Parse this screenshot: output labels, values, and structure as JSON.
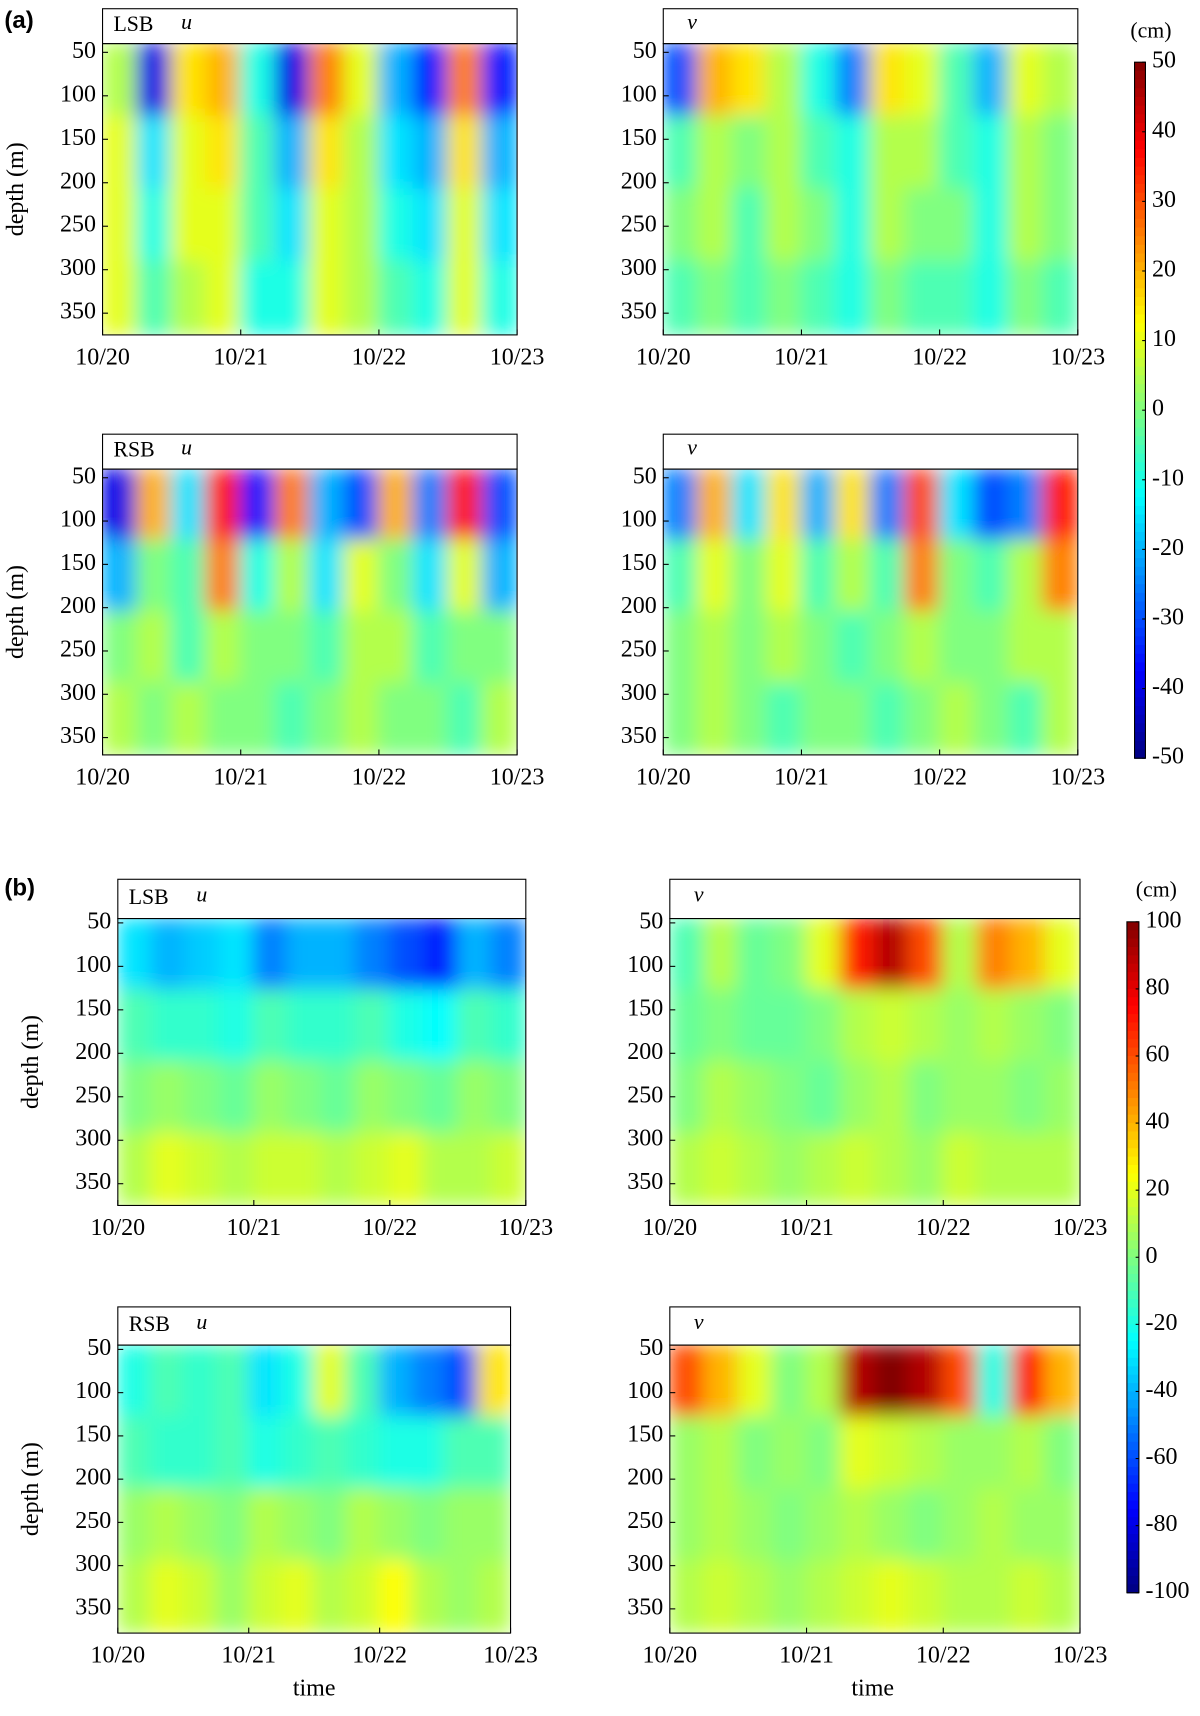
{
  "chart_data": [
    {
      "type": "heatmap",
      "label": "(a)",
      "colorbar": {
        "label": "(cm)",
        "lim": [
          -50,
          50
        ],
        "ticks": [
          50,
          40,
          30,
          20,
          10,
          0,
          -10,
          -20,
          -30,
          -40,
          -50
        ]
      },
      "panels": [
        {
          "station": "LSB",
          "component": "u",
          "ylabel": "depth (m)",
          "ylim": [
            40,
            375
          ],
          "yticks": [
            50,
            100,
            150,
            200,
            250,
            300,
            350
          ],
          "xlim": [
            0,
            3
          ],
          "xticks": [
            {
              "value": 0,
              "label": "10/20"
            },
            {
              "value": 1,
              "label": "10/21"
            },
            {
              "value": 2,
              "label": "10/22"
            },
            {
              "value": 3,
              "label": "10/23"
            }
          ],
          "z": [
            [
              5,
              -40,
              15,
              20,
              -10,
              -40,
              25,
              10,
              -20,
              -35,
              25,
              -35
            ],
            [
              10,
              -15,
              10,
              15,
              -5,
              -20,
              15,
              5,
              -15,
              -20,
              15,
              -20
            ],
            [
              10,
              -10,
              10,
              10,
              -5,
              -15,
              10,
              5,
              -10,
              -15,
              10,
              -15
            ],
            [
              10,
              -5,
              5,
              10,
              -10,
              -10,
              10,
              5,
              -5,
              -10,
              10,
              -10
            ]
          ]
        },
        {
          "component": "v",
          "ylim": [
            40,
            375
          ],
          "yticks": [
            50,
            100,
            150,
            200,
            250,
            300,
            350
          ],
          "xlim": [
            0,
            3
          ],
          "xticks": [
            {
              "value": 0,
              "label": "10/20"
            },
            {
              "value": 1,
              "label": "10/21"
            },
            {
              "value": 2,
              "label": "10/22"
            },
            {
              "value": 3,
              "label": "10/23"
            }
          ],
          "z": [
            [
              -30,
              20,
              15,
              5,
              -10,
              -25,
              15,
              10,
              -5,
              -20,
              10,
              5
            ],
            [
              -5,
              5,
              0,
              5,
              -5,
              -10,
              5,
              5,
              -5,
              -10,
              5,
              0
            ],
            [
              0,
              5,
              -5,
              5,
              0,
              -10,
              5,
              0,
              0,
              -10,
              5,
              0
            ],
            [
              -5,
              0,
              -5,
              0,
              -5,
              -10,
              0,
              -5,
              -5,
              -10,
              0,
              -5
            ]
          ]
        },
        {
          "station": "RSB",
          "component": "u",
          "ylabel": "depth (m)",
          "ylim": [
            40,
            370
          ],
          "yticks": [
            50,
            100,
            150,
            200,
            250,
            300,
            350
          ],
          "xlim": [
            0,
            3
          ],
          "xticks": [
            {
              "value": 0,
              "label": "10/20"
            },
            {
              "value": 1,
              "label": "10/21"
            },
            {
              "value": 2,
              "label": "10/22"
            },
            {
              "value": 3,
              "label": "10/23"
            }
          ],
          "z": [
            [
              -40,
              20,
              -15,
              35,
              -35,
              25,
              -20,
              -30,
              20,
              -25,
              35,
              -30
            ],
            [
              -20,
              0,
              -5,
              25,
              -10,
              5,
              -15,
              10,
              0,
              -15,
              10,
              -20
            ],
            [
              0,
              5,
              -5,
              5,
              0,
              0,
              -5,
              5,
              5,
              -5,
              0,
              0
            ],
            [
              5,
              0,
              5,
              0,
              0,
              -5,
              0,
              5,
              0,
              0,
              -5,
              5
            ]
          ]
        },
        {
          "component": "v",
          "ylim": [
            40,
            370
          ],
          "yticks": [
            50,
            100,
            150,
            200,
            250,
            300,
            350
          ],
          "xlim": [
            0,
            3
          ],
          "xticks": [
            {
              "value": 0,
              "label": "10/20"
            },
            {
              "value": 1,
              "label": "10/21"
            },
            {
              "value": 2,
              "label": "10/22"
            },
            {
              "value": 3,
              "label": "10/23"
            }
          ],
          "z": [
            [
              -25,
              20,
              -15,
              15,
              -20,
              15,
              -25,
              30,
              -15,
              -30,
              -25,
              35
            ],
            [
              -5,
              10,
              0,
              10,
              -5,
              5,
              -5,
              25,
              0,
              -5,
              5,
              25
            ],
            [
              0,
              5,
              0,
              5,
              0,
              -5,
              0,
              5,
              0,
              0,
              5,
              5
            ],
            [
              0,
              5,
              0,
              -5,
              0,
              0,
              -5,
              0,
              5,
              0,
              -5,
              5
            ]
          ]
        }
      ]
    },
    {
      "type": "heatmap",
      "label": "(b)",
      "colorbar": {
        "label": "(cm)",
        "lim": [
          -100,
          100
        ],
        "ticks": [
          100,
          80,
          60,
          40,
          20,
          0,
          -20,
          -40,
          -60,
          -80,
          -100
        ]
      },
      "panels": [
        {
          "station": "LSB",
          "component": "u",
          "ylabel": "depth (m)",
          "ylim": [
            45,
            375
          ],
          "yticks": [
            50,
            100,
            150,
            200,
            250,
            300,
            350
          ],
          "xlim": [
            0,
            3
          ],
          "xticks": [
            {
              "value": 0,
              "label": "10/20"
            },
            {
              "value": 1,
              "label": "10/21"
            },
            {
              "value": 2,
              "label": "10/22"
            },
            {
              "value": 3,
              "label": "10/23"
            }
          ],
          "z": [
            [
              -30,
              -40,
              -35,
              -30,
              -50,
              -40,
              -40,
              -50,
              -60,
              -70,
              -40,
              -50
            ],
            [
              -10,
              -15,
              -15,
              -20,
              -10,
              -15,
              -15,
              -10,
              -20,
              -25,
              -10,
              -15
            ],
            [
              0,
              5,
              0,
              -5,
              5,
              0,
              -5,
              5,
              0,
              -5,
              5,
              0
            ],
            [
              10,
              20,
              15,
              10,
              15,
              15,
              10,
              15,
              20,
              10,
              10,
              15
            ]
          ]
        },
        {
          "component": "v",
          "ylim": [
            45,
            375
          ],
          "yticks": [
            50,
            100,
            150,
            200,
            250,
            300,
            350
          ],
          "xlim": [
            0,
            3
          ],
          "xticks": [
            {
              "value": 0,
              "label": "10/20"
            },
            {
              "value": 1,
              "label": "10/21"
            },
            {
              "value": 2,
              "label": "10/22"
            },
            {
              "value": 3,
              "label": "10/23"
            }
          ],
          "z": [
            [
              -10,
              10,
              -5,
              0,
              20,
              70,
              90,
              60,
              10,
              50,
              40,
              20
            ],
            [
              -5,
              0,
              -5,
              -5,
              0,
              10,
              15,
              10,
              5,
              10,
              5,
              0
            ],
            [
              0,
              10,
              5,
              0,
              -5,
              5,
              10,
              0,
              5,
              5,
              0,
              5
            ],
            [
              10,
              15,
              10,
              5,
              10,
              15,
              10,
              5,
              15,
              10,
              10,
              10
            ]
          ]
        },
        {
          "station": "RSB",
          "component": "u",
          "ylabel": "depth (m)",
          "xlabel": "time",
          "ylim": [
            45,
            378
          ],
          "yticks": [
            50,
            100,
            150,
            200,
            250,
            300,
            350
          ],
          "xlim": [
            0,
            3
          ],
          "xticks": [
            {
              "value": 0,
              "label": "10/20"
            },
            {
              "value": 1,
              "label": "10/21"
            },
            {
              "value": 2,
              "label": "10/22"
            },
            {
              "value": 3,
              "label": "10/23"
            }
          ],
          "z": [
            [
              -20,
              -10,
              -15,
              -10,
              -30,
              -20,
              20,
              -10,
              -40,
              -50,
              -60,
              30
            ],
            [
              -10,
              -15,
              -15,
              -10,
              -20,
              -15,
              -10,
              -15,
              -20,
              -20,
              -10,
              -10
            ],
            [
              5,
              10,
              5,
              0,
              10,
              5,
              0,
              10,
              5,
              0,
              5,
              5
            ],
            [
              10,
              20,
              15,
              5,
              15,
              20,
              10,
              15,
              25,
              10,
              5,
              10
            ]
          ]
        },
        {
          "component": "v",
          "xlabel": "time",
          "ylim": [
            45,
            378
          ],
          "yticks": [
            50,
            100,
            150,
            200,
            250,
            300,
            350
          ],
          "xlim": [
            0,
            3
          ],
          "xticks": [
            {
              "value": 0,
              "label": "10/20"
            },
            {
              "value": 1,
              "label": "10/21"
            },
            {
              "value": 2,
              "label": "10/22"
            },
            {
              "value": 3,
              "label": "10/23"
            }
          ],
          "z": [
            [
              60,
              40,
              20,
              0,
              10,
              90,
              100,
              90,
              60,
              -20,
              70,
              40
            ],
            [
              5,
              10,
              0,
              5,
              0,
              20,
              15,
              10,
              5,
              5,
              10,
              0
            ],
            [
              5,
              10,
              5,
              0,
              5,
              10,
              5,
              0,
              5,
              10,
              5,
              5
            ],
            [
              10,
              15,
              10,
              5,
              10,
              15,
              20,
              15,
              10,
              10,
              15,
              10
            ]
          ]
        }
      ]
    }
  ]
}
